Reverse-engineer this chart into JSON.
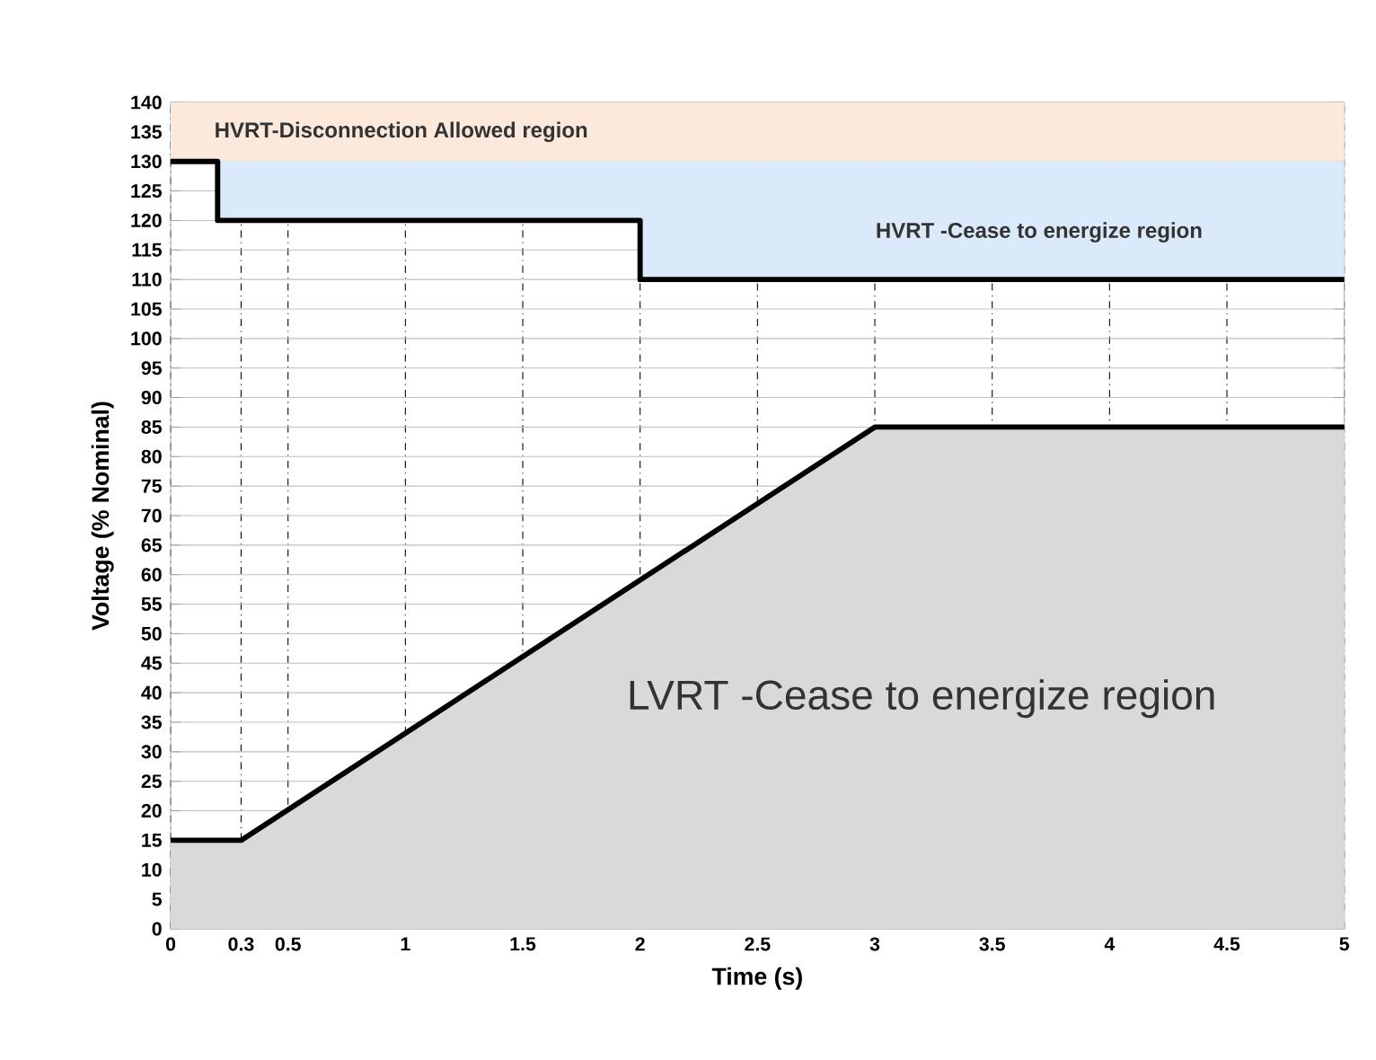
{
  "chart_data": {
    "type": "line",
    "xlabel": "Time (s)",
    "ylabel": "Voltage (% Nominal)",
    "xlim": [
      0,
      5
    ],
    "ylim": [
      0,
      140
    ],
    "xticks": [
      0,
      0.3,
      0.5,
      1,
      1.5,
      2,
      2.5,
      3,
      3.5,
      4,
      4.5,
      5
    ],
    "yticks": [
      0,
      5,
      10,
      15,
      20,
      25,
      30,
      35,
      40,
      45,
      50,
      55,
      60,
      65,
      70,
      75,
      80,
      85,
      90,
      95,
      100,
      105,
      110,
      115,
      120,
      125,
      130,
      135,
      140
    ],
    "grid": true,
    "bands": [
      {
        "axis": "y",
        "from": 130,
        "to": 140,
        "color": "#fbe9dc"
      }
    ],
    "series": [
      {
        "color": "#000000",
        "x": [
          0,
          0.2,
          0.2,
          2,
          2,
          5
        ],
        "values": [
          130,
          130,
          120,
          120,
          110,
          110
        ],
        "lower": [
          130,
          130,
          120,
          120,
          110,
          110
        ],
        "upper": [
          130,
          130,
          130,
          130,
          130,
          130
        ]
      },
      {
        "type": "area",
        "color": "#000000",
        "x": [
          0,
          0.3,
          3,
          5
        ],
        "values": [
          15,
          15,
          85,
          85
        ]
      }
    ],
    "annotations": [
      "HVRT-Disconnection Allowed region",
      "HVRT -Cease to energize region",
      "LVRT -Cease to energize region"
    ]
  }
}
